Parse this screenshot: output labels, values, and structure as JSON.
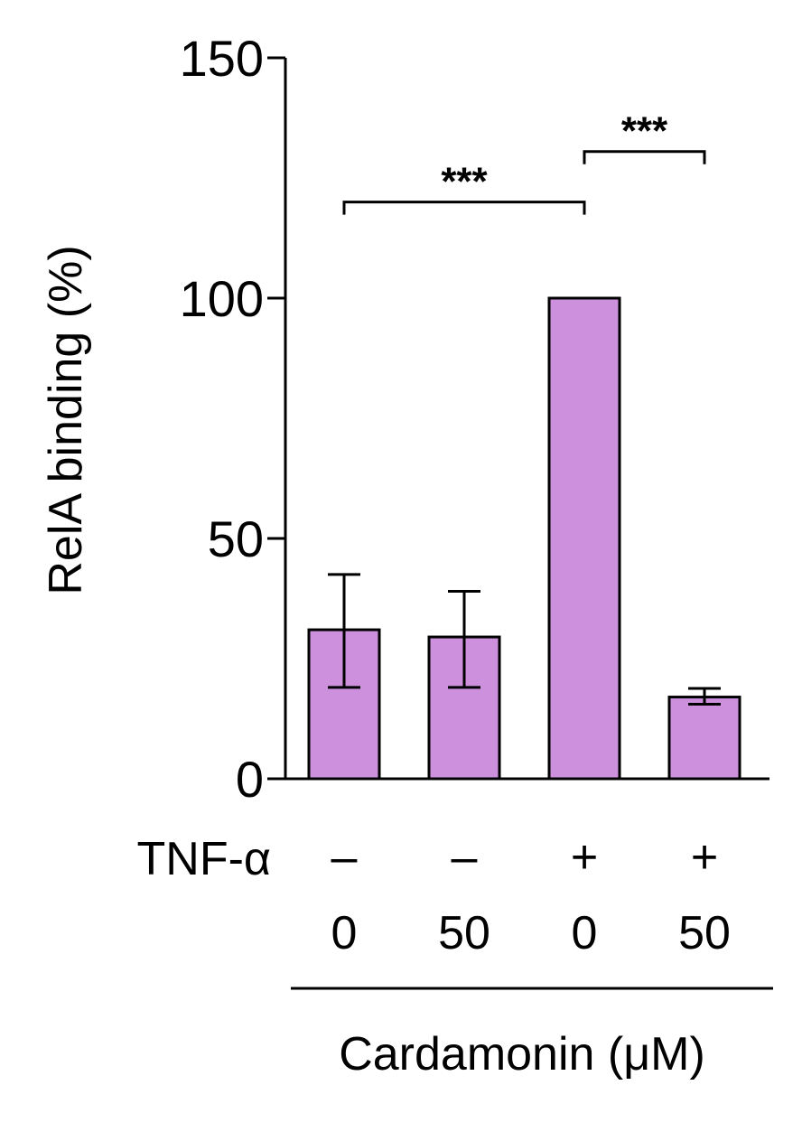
{
  "chart_data": {
    "type": "bar",
    "ylabel": "RelA binding (%)",
    "xlabel": "Cardamonin (μM)",
    "ylim": [
      0,
      150
    ],
    "yticks": [
      0,
      50,
      100,
      150
    ],
    "grid": false,
    "categories": [
      "0",
      "50",
      "0",
      "50"
    ],
    "values": [
      31,
      29.5,
      100,
      17
    ],
    "errors": [
      {
        "low": 19,
        "high": 42.5
      },
      {
        "low": 19,
        "high": 39
      },
      {
        "low": 100,
        "high": 100
      },
      {
        "low": 15.5,
        "high": 18.8
      }
    ],
    "bar_color": "#cc90dc",
    "row_labels": {
      "tnf_label": "TNF-α",
      "tnf_values": [
        "–",
        "–",
        "+",
        "+"
      ],
      "dose_values": [
        "0",
        "50",
        "0",
        "50"
      ]
    },
    "significance": [
      {
        "from": 0,
        "to": 2,
        "label": "***",
        "level": 120
      },
      {
        "from": 2,
        "to": 3,
        "label": "***",
        "level": 130.5
      }
    ]
  }
}
